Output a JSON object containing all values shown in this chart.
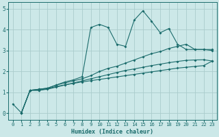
{
  "xlabel": "Humidex (Indice chaleur)",
  "xlim": [
    -0.5,
    23.5
  ],
  "ylim": [
    -0.3,
    5.3
  ],
  "xticks": [
    0,
    1,
    2,
    3,
    4,
    5,
    6,
    7,
    8,
    9,
    10,
    11,
    12,
    13,
    14,
    15,
    16,
    17,
    18,
    19,
    20,
    21,
    22,
    23
  ],
  "yticks": [
    0,
    1,
    2,
    3,
    4,
    5
  ],
  "bg_color": "#cce8e8",
  "grid_color": "#aacccc",
  "line_color": "#1a6b6b",
  "lines": [
    {
      "x": [
        0,
        1,
        2,
        3,
        4,
        5,
        6,
        7,
        8,
        9,
        10,
        11,
        12,
        13,
        14,
        15,
        16,
        17,
        18,
        19,
        20,
        21,
        22,
        23
      ],
      "y": [
        0.45,
        0.02,
        1.1,
        1.15,
        1.2,
        1.35,
        1.5,
        1.6,
        1.75,
        4.1,
        4.25,
        4.1,
        3.3,
        3.2,
        4.45,
        4.9,
        4.4,
        3.85,
        4.05,
        3.3,
        3.05,
        3.05,
        3.05,
        3.05
      ]
    },
    {
      "x": [
        1,
        2,
        3,
        4,
        5,
        6,
        7,
        8,
        9,
        10,
        11,
        12,
        13,
        14,
        15,
        16,
        17,
        18,
        19,
        20,
        21,
        22,
        23
      ],
      "y": [
        0.02,
        1.1,
        1.15,
        1.2,
        1.35,
        1.45,
        1.55,
        1.65,
        1.8,
        2.0,
        2.15,
        2.25,
        2.4,
        2.55,
        2.7,
        2.85,
        2.95,
        3.1,
        3.2,
        3.3,
        3.05,
        3.05,
        3.0
      ]
    },
    {
      "x": [
        1,
        2,
        3,
        4,
        5,
        6,
        7,
        8,
        9,
        10,
        11,
        12,
        13,
        14,
        15,
        16,
        17,
        18,
        19,
        20,
        21,
        22,
        23
      ],
      "y": [
        0.02,
        1.1,
        1.1,
        1.15,
        1.25,
        1.35,
        1.45,
        1.55,
        1.65,
        1.75,
        1.85,
        1.95,
        2.05,
        2.12,
        2.2,
        2.28,
        2.35,
        2.42,
        2.48,
        2.53,
        2.55,
        2.56,
        2.5
      ]
    },
    {
      "x": [
        1,
        2,
        3,
        4,
        5,
        6,
        7,
        8,
        9,
        10,
        11,
        12,
        13,
        14,
        15,
        16,
        17,
        18,
        19,
        20,
        21,
        22,
        23
      ],
      "y": [
        0.02,
        1.1,
        1.1,
        1.18,
        1.28,
        1.36,
        1.43,
        1.5,
        1.56,
        1.62,
        1.68,
        1.74,
        1.8,
        1.86,
        1.92,
        1.98,
        2.04,
        2.1,
        2.16,
        2.2,
        2.24,
        2.28,
        2.5
      ]
    }
  ]
}
